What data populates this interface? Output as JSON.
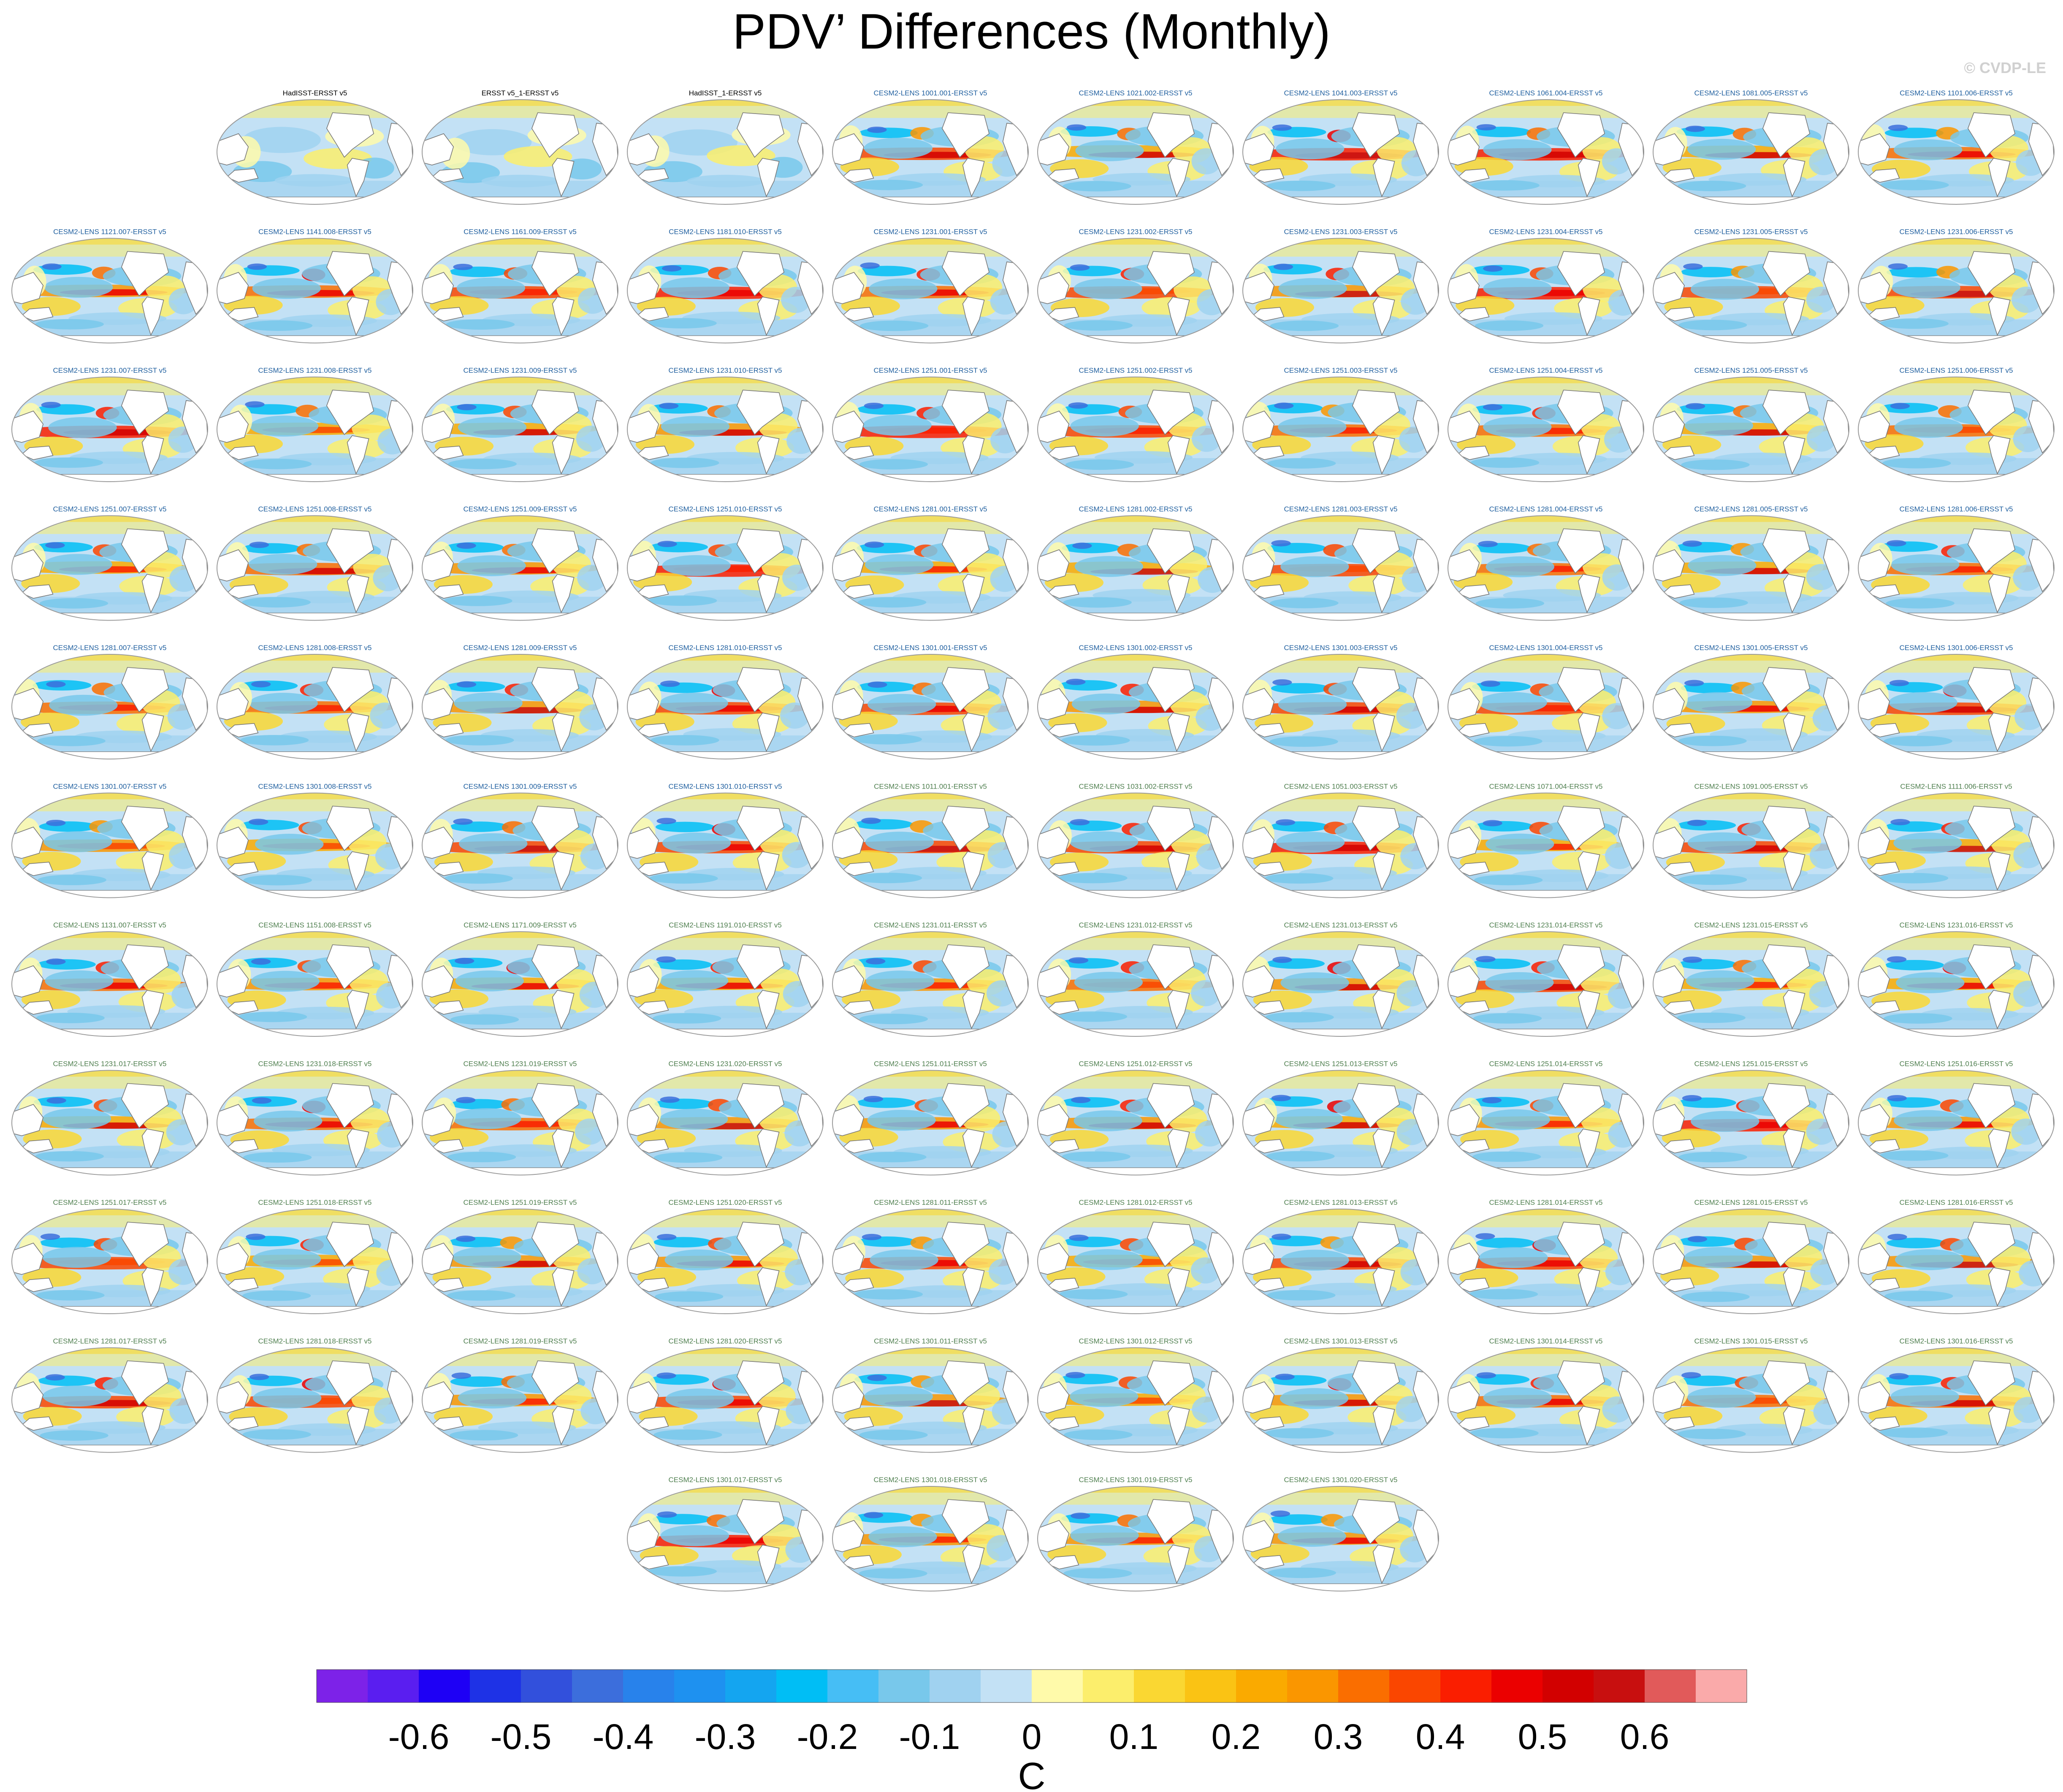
{
  "title": "PDV’ Differences (Monthly)",
  "credit": "© CVDP-LE",
  "colors": {
    "obs_title": "#000000",
    "cesm_title_a": "#1f5f9f",
    "cesm_title_b": "#4f7f4f",
    "land": "#ffffff",
    "coast": "#777777"
  },
  "chart_data": {
    "type": "heatmap",
    "colorbar": {
      "levels": [
        -0.6,
        -0.55,
        -0.5,
        -0.45,
        -0.4,
        -0.35,
        -0.3,
        -0.25,
        -0.2,
        -0.15,
        -0.1,
        -0.05,
        0,
        0.05,
        0.1,
        0.15,
        0.2,
        0.25,
        0.3,
        0.35,
        0.4,
        0.45,
        0.5,
        0.55,
        0.6
      ],
      "tick_labels": [
        "-0.6",
        "-0.5",
        "-0.4",
        "-0.3",
        "-0.2",
        "-0.1",
        "0",
        "0.1",
        "0.2",
        "0.3",
        "0.4",
        "0.5",
        "0.6"
      ],
      "colors": [
        "#7d22e8",
        "#5a1ef0",
        "#1e00f5",
        "#1e32e6",
        "#3250dc",
        "#3c6edc",
        "#2882eb",
        "#1e91f0",
        "#14a5f0",
        "#00bef5",
        "#46bef5",
        "#78c8eb",
        "#a0d2f0",
        "#c3e1f5",
        "#fffaaa",
        "#fcee6c",
        "#fad732",
        "#fac314",
        "#faaa00",
        "#fa9600",
        "#fa6e00",
        "#fa4600",
        "#fa1e00",
        "#eb0000",
        "#d20000",
        "#c80f0f",
        "#e15a5a",
        "#faaaaa"
      ],
      "unit": "C"
    },
    "panels": [
      {
        "title": "HadISST-ERSST v5",
        "group": "obs",
        "row": 0,
        "col": 1
      },
      {
        "title": "ERSST v5_1-ERSST v5",
        "group": "obs",
        "row": 0,
        "col": 2
      },
      {
        "title": "HadISST_1-ERSST v5",
        "group": "obs",
        "row": 0,
        "col": 3
      },
      {
        "title": "CESM2-LENS 1001.001-ERSST v5",
        "group": "a",
        "row": 0,
        "col": 4
      },
      {
        "title": "CESM2-LENS 1021.002-ERSST v5",
        "group": "a",
        "row": 0,
        "col": 5
      },
      {
        "title": "CESM2-LENS 1041.003-ERSST v5",
        "group": "a",
        "row": 0,
        "col": 6
      },
      {
        "title": "CESM2-LENS 1061.004-ERSST v5",
        "group": "a",
        "row": 0,
        "col": 7
      },
      {
        "title": "CESM2-LENS 1081.005-ERSST v5",
        "group": "a",
        "row": 0,
        "col": 8
      },
      {
        "title": "CESM2-LENS 1101.006-ERSST v5",
        "group": "a",
        "row": 0,
        "col": 9
      },
      {
        "title": "CESM2-LENS 1121.007-ERSST v5",
        "group": "a",
        "row": 1,
        "col": 0
      },
      {
        "title": "CESM2-LENS 1141.008-ERSST v5",
        "group": "a",
        "row": 1,
        "col": 1
      },
      {
        "title": "CESM2-LENS 1161.009-ERSST v5",
        "group": "a",
        "row": 1,
        "col": 2
      },
      {
        "title": "CESM2-LENS 1181.010-ERSST v5",
        "group": "a",
        "row": 1,
        "col": 3
      },
      {
        "title": "CESM2-LENS 1231.001-ERSST v5",
        "group": "a",
        "row": 1,
        "col": 4
      },
      {
        "title": "CESM2-LENS 1231.002-ERSST v5",
        "group": "a",
        "row": 1,
        "col": 5
      },
      {
        "title": "CESM2-LENS 1231.003-ERSST v5",
        "group": "a",
        "row": 1,
        "col": 6
      },
      {
        "title": "CESM2-LENS 1231.004-ERSST v5",
        "group": "a",
        "row": 1,
        "col": 7
      },
      {
        "title": "CESM2-LENS 1231.005-ERSST v5",
        "group": "a",
        "row": 1,
        "col": 8
      },
      {
        "title": "CESM2-LENS 1231.006-ERSST v5",
        "group": "a",
        "row": 1,
        "col": 9
      },
      {
        "title": "CESM2-LENS 1231.007-ERSST v5",
        "group": "a",
        "row": 2,
        "col": 0
      },
      {
        "title": "CESM2-LENS 1231.008-ERSST v5",
        "group": "a",
        "row": 2,
        "col": 1
      },
      {
        "title": "CESM2-LENS 1231.009-ERSST v5",
        "group": "a",
        "row": 2,
        "col": 2
      },
      {
        "title": "CESM2-LENS 1231.010-ERSST v5",
        "group": "a",
        "row": 2,
        "col": 3
      },
      {
        "title": "CESM2-LENS 1251.001-ERSST v5",
        "group": "a",
        "row": 2,
        "col": 4
      },
      {
        "title": "CESM2-LENS 1251.002-ERSST v5",
        "group": "a",
        "row": 2,
        "col": 5
      },
      {
        "title": "CESM2-LENS 1251.003-ERSST v5",
        "group": "a",
        "row": 2,
        "col": 6
      },
      {
        "title": "CESM2-LENS 1251.004-ERSST v5",
        "group": "a",
        "row": 2,
        "col": 7
      },
      {
        "title": "CESM2-LENS 1251.005-ERSST v5",
        "group": "a",
        "row": 2,
        "col": 8
      },
      {
        "title": "CESM2-LENS 1251.006-ERSST v5",
        "group": "a",
        "row": 2,
        "col": 9
      },
      {
        "title": "CESM2-LENS 1251.007-ERSST v5",
        "group": "a",
        "row": 3,
        "col": 0
      },
      {
        "title": "CESM2-LENS 1251.008-ERSST v5",
        "group": "a",
        "row": 3,
        "col": 1
      },
      {
        "title": "CESM2-LENS 1251.009-ERSST v5",
        "group": "a",
        "row": 3,
        "col": 2
      },
      {
        "title": "CESM2-LENS 1251.010-ERSST v5",
        "group": "a",
        "row": 3,
        "col": 3
      },
      {
        "title": "CESM2-LENS 1281.001-ERSST v5",
        "group": "a",
        "row": 3,
        "col": 4
      },
      {
        "title": "CESM2-LENS 1281.002-ERSST v5",
        "group": "a",
        "row": 3,
        "col": 5
      },
      {
        "title": "CESM2-LENS 1281.003-ERSST v5",
        "group": "a",
        "row": 3,
        "col": 6
      },
      {
        "title": "CESM2-LENS 1281.004-ERSST v5",
        "group": "a",
        "row": 3,
        "col": 7
      },
      {
        "title": "CESM2-LENS 1281.005-ERSST v5",
        "group": "a",
        "row": 3,
        "col": 8
      },
      {
        "title": "CESM2-LENS 1281.006-ERSST v5",
        "group": "a",
        "row": 3,
        "col": 9
      },
      {
        "title": "CESM2-LENS 1281.007-ERSST v5",
        "group": "a",
        "row": 4,
        "col": 0
      },
      {
        "title": "CESM2-LENS 1281.008-ERSST v5",
        "group": "a",
        "row": 4,
        "col": 1
      },
      {
        "title": "CESM2-LENS 1281.009-ERSST v5",
        "group": "a",
        "row": 4,
        "col": 2
      },
      {
        "title": "CESM2-LENS 1281.010-ERSST v5",
        "group": "a",
        "row": 4,
        "col": 3
      },
      {
        "title": "CESM2-LENS 1301.001-ERSST v5",
        "group": "a",
        "row": 4,
        "col": 4
      },
      {
        "title": "CESM2-LENS 1301.002-ERSST v5",
        "group": "a",
        "row": 4,
        "col": 5
      },
      {
        "title": "CESM2-LENS 1301.003-ERSST v5",
        "group": "a",
        "row": 4,
        "col": 6
      },
      {
        "title": "CESM2-LENS 1301.004-ERSST v5",
        "group": "a",
        "row": 4,
        "col": 7
      },
      {
        "title": "CESM2-LENS 1301.005-ERSST v5",
        "group": "a",
        "row": 4,
        "col": 8
      },
      {
        "title": "CESM2-LENS 1301.006-ERSST v5",
        "group": "a",
        "row": 4,
        "col": 9
      },
      {
        "title": "CESM2-LENS 1301.007-ERSST v5",
        "group": "a",
        "row": 5,
        "col": 0
      },
      {
        "title": "CESM2-LENS 1301.008-ERSST v5",
        "group": "a",
        "row": 5,
        "col": 1
      },
      {
        "title": "CESM2-LENS 1301.009-ERSST v5",
        "group": "a",
        "row": 5,
        "col": 2
      },
      {
        "title": "CESM2-LENS 1301.010-ERSST v5",
        "group": "a",
        "row": 5,
        "col": 3
      },
      {
        "title": "CESM2-LENS 1011.001-ERSST v5",
        "group": "b",
        "row": 5,
        "col": 4
      },
      {
        "title": "CESM2-LENS 1031.002-ERSST v5",
        "group": "b",
        "row": 5,
        "col": 5
      },
      {
        "title": "CESM2-LENS 1051.003-ERSST v5",
        "group": "b",
        "row": 5,
        "col": 6
      },
      {
        "title": "CESM2-LENS 1071.004-ERSST v5",
        "group": "b",
        "row": 5,
        "col": 7
      },
      {
        "title": "CESM2-LENS 1091.005-ERSST v5",
        "group": "b",
        "row": 5,
        "col": 8
      },
      {
        "title": "CESM2-LENS 1111.006-ERSST v5",
        "group": "b",
        "row": 5,
        "col": 9
      },
      {
        "title": "CESM2-LENS 1131.007-ERSST v5",
        "group": "b",
        "row": 6,
        "col": 0
      },
      {
        "title": "CESM2-LENS 1151.008-ERSST v5",
        "group": "b",
        "row": 6,
        "col": 1
      },
      {
        "title": "CESM2-LENS 1171.009-ERSST v5",
        "group": "b",
        "row": 6,
        "col": 2
      },
      {
        "title": "CESM2-LENS 1191.010-ERSST v5",
        "group": "b",
        "row": 6,
        "col": 3
      },
      {
        "title": "CESM2-LENS 1231.011-ERSST v5",
        "group": "b",
        "row": 6,
        "col": 4
      },
      {
        "title": "CESM2-LENS 1231.012-ERSST v5",
        "group": "b",
        "row": 6,
        "col": 5
      },
      {
        "title": "CESM2-LENS 1231.013-ERSST v5",
        "group": "b",
        "row": 6,
        "col": 6
      },
      {
        "title": "CESM2-LENS 1231.014-ERSST v5",
        "group": "b",
        "row": 6,
        "col": 7
      },
      {
        "title": "CESM2-LENS 1231.015-ERSST v5",
        "group": "b",
        "row": 6,
        "col": 8
      },
      {
        "title": "CESM2-LENS 1231.016-ERSST v5",
        "group": "b",
        "row": 6,
        "col": 9
      },
      {
        "title": "CESM2-LENS 1231.017-ERSST v5",
        "group": "b",
        "row": 7,
        "col": 0
      },
      {
        "title": "CESM2-LENS 1231.018-ERSST v5",
        "group": "b",
        "row": 7,
        "col": 1
      },
      {
        "title": "CESM2-LENS 1231.019-ERSST v5",
        "group": "b",
        "row": 7,
        "col": 2
      },
      {
        "title": "CESM2-LENS 1231.020-ERSST v5",
        "group": "b",
        "row": 7,
        "col": 3
      },
      {
        "title": "CESM2-LENS 1251.011-ERSST v5",
        "group": "b",
        "row": 7,
        "col": 4
      },
      {
        "title": "CESM2-LENS 1251.012-ERSST v5",
        "group": "b",
        "row": 7,
        "col": 5
      },
      {
        "title": "CESM2-LENS 1251.013-ERSST v5",
        "group": "b",
        "row": 7,
        "col": 6
      },
      {
        "title": "CESM2-LENS 1251.014-ERSST v5",
        "group": "b",
        "row": 7,
        "col": 7
      },
      {
        "title": "CESM2-LENS 1251.015-ERSST v5",
        "group": "b",
        "row": 7,
        "col": 8
      },
      {
        "title": "CESM2-LENS 1251.016-ERSST v5",
        "group": "b",
        "row": 7,
        "col": 9
      },
      {
        "title": "CESM2-LENS 1251.017-ERSST v5",
        "group": "b",
        "row": 8,
        "col": 0
      },
      {
        "title": "CESM2-LENS 1251.018-ERSST v5",
        "group": "b",
        "row": 8,
        "col": 1
      },
      {
        "title": "CESM2-LENS 1251.019-ERSST v5",
        "group": "b",
        "row": 8,
        "col": 2
      },
      {
        "title": "CESM2-LENS 1251.020-ERSST v5",
        "group": "b",
        "row": 8,
        "col": 3
      },
      {
        "title": "CESM2-LENS 1281.011-ERSST v5",
        "group": "b",
        "row": 8,
        "col": 4
      },
      {
        "title": "CESM2-LENS 1281.012-ERSST v5",
        "group": "b",
        "row": 8,
        "col": 5
      },
      {
        "title": "CESM2-LENS 1281.013-ERSST v5",
        "group": "b",
        "row": 8,
        "col": 6
      },
      {
        "title": "CESM2-LENS 1281.014-ERSST v5",
        "group": "b",
        "row": 8,
        "col": 7
      },
      {
        "title": "CESM2-LENS 1281.015-ERSST v5",
        "group": "b",
        "row": 8,
        "col": 8
      },
      {
        "title": "CESM2-LENS 1281.016-ERSST v5",
        "group": "b",
        "row": 8,
        "col": 9
      },
      {
        "title": "CESM2-LENS 1281.017-ERSST v5",
        "group": "b",
        "row": 9,
        "col": 0
      },
      {
        "title": "CESM2-LENS 1281.018-ERSST v5",
        "group": "b",
        "row": 9,
        "col": 1
      },
      {
        "title": "CESM2-LENS 1281.019-ERSST v5",
        "group": "b",
        "row": 9,
        "col": 2
      },
      {
        "title": "CESM2-LENS 1281.020-ERSST v5",
        "group": "b",
        "row": 9,
        "col": 3
      },
      {
        "title": "CESM2-LENS 1301.011-ERSST v5",
        "group": "b",
        "row": 9,
        "col": 4
      },
      {
        "title": "CESM2-LENS 1301.012-ERSST v5",
        "group": "b",
        "row": 9,
        "col": 5
      },
      {
        "title": "CESM2-LENS 1301.013-ERSST v5",
        "group": "b",
        "row": 9,
        "col": 6
      },
      {
        "title": "CESM2-LENS 1301.014-ERSST v5",
        "group": "b",
        "row": 9,
        "col": 7
      },
      {
        "title": "CESM2-LENS 1301.015-ERSST v5",
        "group": "b",
        "row": 9,
        "col": 8
      },
      {
        "title": "CESM2-LENS 1301.016-ERSST v5",
        "group": "b",
        "row": 9,
        "col": 9
      },
      {
        "title": "CESM2-LENS 1301.017-ERSST v5",
        "group": "b",
        "row": 10,
        "col": 3
      },
      {
        "title": "CESM2-LENS 1301.018-ERSST v5",
        "group": "b",
        "row": 10,
        "col": 4
      },
      {
        "title": "CESM2-LENS 1301.019-ERSST v5",
        "group": "b",
        "row": 10,
        "col": 5
      },
      {
        "title": "CESM2-LENS 1301.020-ERSST v5",
        "group": "b",
        "row": 10,
        "col": 6
      }
    ]
  }
}
